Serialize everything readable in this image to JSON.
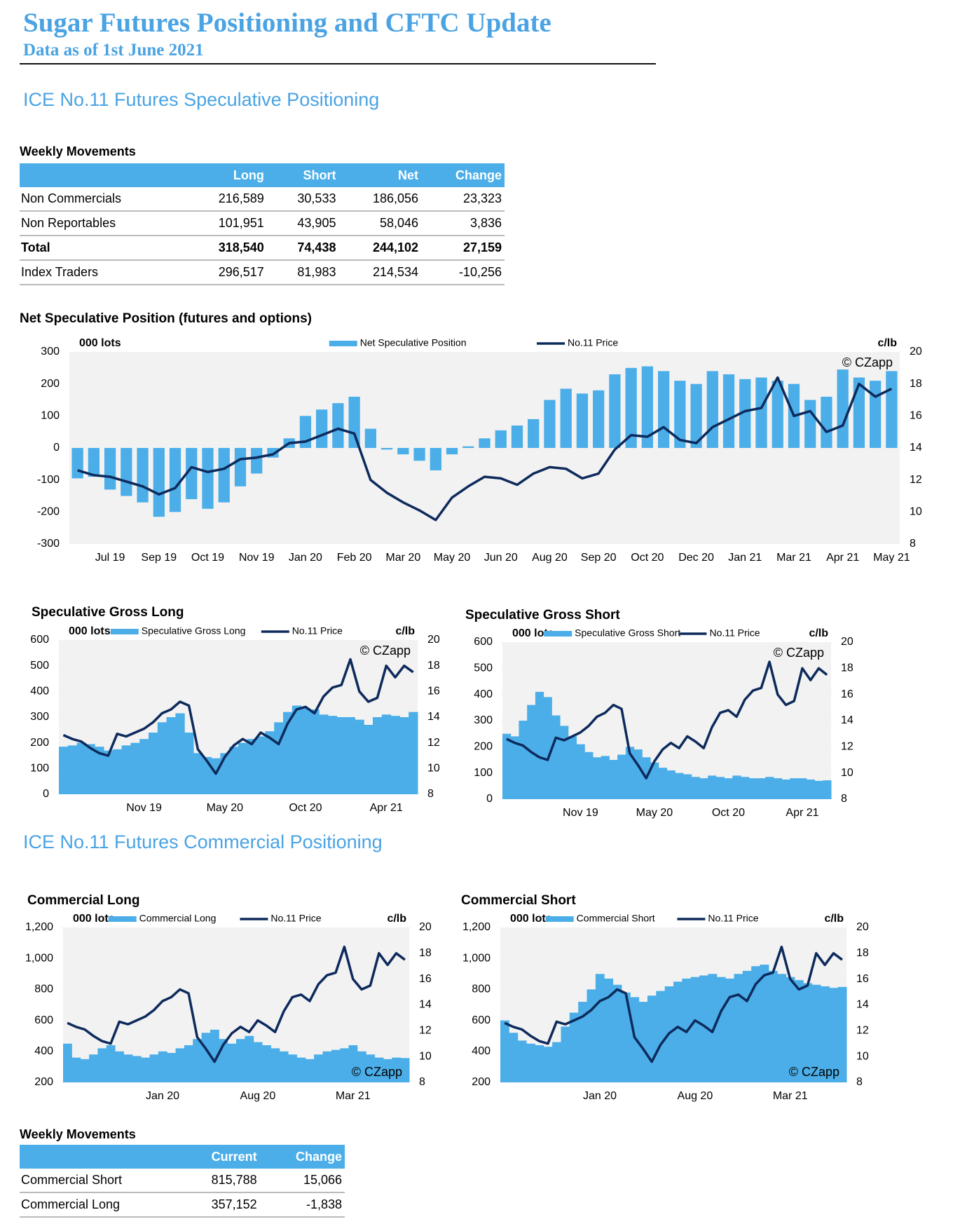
{
  "header": {
    "title": "Sugar Futures Positioning and CFTC Update",
    "subtitle": "Data as of 1st June 2021"
  },
  "sections": [
    "ICE No.11 Futures Speculative Positioning",
    "ICE No.11 Futures Commercial Positioning"
  ],
  "tables": [
    {
      "title": "Weekly Movements",
      "columns": [
        "Long",
        "Short",
        "Net",
        "Change"
      ],
      "rows": [
        [
          "Non Commercials",
          "216,589",
          "30,533",
          "186,056",
          "23,323"
        ],
        [
          "Non Reportables",
          "101,951",
          "43,905",
          "58,046",
          "3,836"
        ],
        [
          "Total",
          "318,540",
          "74,438",
          "244,102",
          "27,159"
        ],
        [
          "Index Traders",
          "296,517",
          "81,983",
          "214,534",
          "-10,256"
        ]
      ]
    },
    {
      "title": "Weekly Movements",
      "columns": [
        "Current",
        "Change"
      ],
      "rows": [
        [
          "Commercial Short",
          "815,788",
          "15,066"
        ],
        [
          "Commercial Long",
          "357,152",
          "-1,838"
        ]
      ]
    }
  ],
  "chart_data": [
    {
      "type": "combo",
      "title": "Net Speculative Position (futures and options)",
      "y_label": "000 lots",
      "y2_label": "c/lb",
      "annotation": "© CZapp",
      "annotation_corner": "top-right",
      "categories": [
        null,
        null,
        "Jul 19",
        null,
        null,
        "Sep 19",
        null,
        null,
        "Oct 19",
        null,
        null,
        "Nov 19",
        null,
        null,
        "Jan 20",
        null,
        null,
        "Feb 20",
        null,
        null,
        "Mar 20",
        null,
        null,
        "May 20",
        null,
        null,
        "Jun 20",
        null,
        null,
        "Aug 20",
        null,
        null,
        "Sep 20",
        null,
        null,
        "Oct 20",
        null,
        null,
        "Dec 20",
        null,
        null,
        "Jan 21",
        null,
        null,
        "Mar 21",
        null,
        null,
        "Apr 21",
        null,
        null,
        "May 21"
      ],
      "series": [
        {
          "name": "Net Speculative Position",
          "type": "bar",
          "color": "#4baee8",
          "values": [
            -95,
            -90,
            -130,
            -150,
            -170,
            -215,
            -200,
            -160,
            -190,
            -170,
            -120,
            -80,
            -30,
            30,
            100,
            120,
            140,
            160,
            60,
            -5,
            -20,
            -40,
            -70,
            -20,
            5,
            30,
            55,
            70,
            90,
            150,
            185,
            170,
            180,
            230,
            250,
            255,
            240,
            210,
            200,
            240,
            230,
            215,
            220,
            210,
            200,
            150,
            160,
            245,
            220,
            210,
            240
          ]
        },
        {
          "name": "No.11 Price",
          "type": "line",
          "axis": "y2",
          "color": "#0d2a5c",
          "values": [
            12.6,
            12.3,
            12.2,
            11.9,
            11.6,
            11.1,
            11.5,
            12.8,
            12.5,
            12.7,
            13.3,
            13.4,
            13.6,
            14.3,
            14.4,
            14.8,
            15.2,
            14.9,
            12.0,
            11.2,
            10.6,
            10.1,
            9.5,
            10.9,
            11.6,
            12.2,
            12.1,
            11.7,
            12.4,
            12.8,
            12.7,
            12.1,
            12.4,
            13.9,
            14.8,
            14.7,
            15.3,
            14.5,
            14.3,
            15.3,
            15.8,
            16.3,
            16.5,
            18.4,
            16.0,
            16.3,
            15.0,
            15.4,
            18.0,
            17.2,
            17.7
          ]
        }
      ],
      "ylim": [
        -300,
        300
      ],
      "yticks": [
        -300,
        -200,
        -100,
        0,
        100,
        200,
        300
      ],
      "y2lim": [
        8,
        20
      ],
      "y2ticks": [
        8,
        10,
        12,
        14,
        16,
        18,
        20
      ],
      "legend": "top"
    },
    {
      "type": "combo",
      "title": "Speculative Gross Long",
      "y_label": "000 lots",
      "y2_label": "c/lb",
      "annotation": "© CZapp",
      "annotation_corner": "top-right",
      "categories": [
        null,
        null,
        null,
        null,
        null,
        null,
        null,
        null,
        null,
        "Nov 19",
        null,
        null,
        null,
        null,
        null,
        null,
        null,
        null,
        "May 20",
        null,
        null,
        null,
        null,
        null,
        null,
        null,
        null,
        "Oct 20",
        null,
        null,
        null,
        null,
        null,
        null,
        null,
        null,
        "Apr 21",
        null,
        null,
        null
      ],
      "series": [
        {
          "name": "Speculative Gross Long",
          "type": "bar",
          "color": "#4baee8",
          "values": [
            185,
            190,
            200,
            195,
            185,
            170,
            175,
            190,
            200,
            215,
            240,
            280,
            300,
            315,
            240,
            160,
            145,
            140,
            160,
            185,
            200,
            215,
            225,
            245,
            280,
            320,
            345,
            335,
            330,
            310,
            305,
            300,
            300,
            290,
            270,
            300,
            310,
            305,
            300,
            320
          ]
        },
        {
          "name": "No.11 Price",
          "type": "line",
          "axis": "y2",
          "color": "#0d2a5c",
          "values": [
            12.6,
            12.3,
            12.1,
            11.6,
            11.2,
            11.0,
            12.7,
            12.5,
            12.8,
            13.1,
            13.6,
            14.3,
            14.6,
            15.2,
            14.9,
            11.5,
            10.6,
            9.6,
            10.9,
            11.8,
            12.3,
            11.9,
            12.8,
            12.4,
            11.9,
            13.5,
            14.6,
            14.8,
            14.3,
            15.6,
            16.3,
            16.5,
            18.5,
            16.0,
            15.2,
            15.5,
            18.0,
            17.1,
            18.0,
            17.5
          ]
        }
      ],
      "ylim": [
        0,
        600
      ],
      "yticks": [
        0,
        100,
        200,
        300,
        400,
        500,
        600
      ],
      "y2lim": [
        8,
        20
      ],
      "y2ticks": [
        8,
        10,
        12,
        14,
        16,
        18,
        20
      ],
      "legend": "top"
    },
    {
      "type": "combo",
      "title": "Speculative Gross Short",
      "y_label": "000 lots",
      "y2_label": "c/lb",
      "annotation": "© CZapp",
      "annotation_corner": "top-right",
      "categories": [
        null,
        null,
        null,
        null,
        null,
        null,
        null,
        null,
        null,
        "Nov 19",
        null,
        null,
        null,
        null,
        null,
        null,
        null,
        null,
        "May 20",
        null,
        null,
        null,
        null,
        null,
        null,
        null,
        null,
        "Oct 20",
        null,
        null,
        null,
        null,
        null,
        null,
        null,
        null,
        "Apr 21",
        null,
        null,
        null
      ],
      "series": [
        {
          "name": "Speculative Gross Short",
          "type": "bar",
          "color": "#4baee8",
          "values": [
            250,
            240,
            300,
            360,
            410,
            390,
            320,
            280,
            240,
            210,
            180,
            160,
            165,
            150,
            170,
            200,
            190,
            160,
            140,
            120,
            110,
            100,
            95,
            85,
            80,
            90,
            85,
            80,
            90,
            85,
            80,
            80,
            85,
            80,
            75,
            80,
            80,
            75,
            70,
            72
          ]
        },
        {
          "name": "No.11 Price",
          "type": "line",
          "axis": "y2",
          "color": "#0d2a5c",
          "values": [
            12.6,
            12.3,
            12.1,
            11.6,
            11.2,
            11.0,
            12.7,
            12.5,
            12.8,
            13.1,
            13.6,
            14.3,
            14.6,
            15.2,
            14.9,
            11.5,
            10.6,
            9.6,
            10.9,
            11.8,
            12.3,
            11.9,
            12.8,
            12.4,
            11.9,
            13.5,
            14.6,
            14.8,
            14.3,
            15.6,
            16.3,
            16.5,
            18.5,
            16.0,
            15.2,
            15.5,
            18.0,
            17.1,
            18.0,
            17.5
          ]
        }
      ],
      "ylim": [
        0,
        600
      ],
      "yticks": [
        0,
        100,
        200,
        300,
        400,
        500,
        600
      ],
      "y2lim": [
        8,
        20
      ],
      "y2ticks": [
        8,
        10,
        12,
        14,
        16,
        18,
        20
      ],
      "legend": "top"
    },
    {
      "type": "combo",
      "title": "Commercial Long",
      "y_label": "000 lots",
      "y2_label": "c/lb",
      "annotation": "© CZapp",
      "annotation_corner": "bottom-right",
      "categories": [
        null,
        null,
        null,
        null,
        null,
        null,
        null,
        null,
        null,
        null,
        null,
        "Jan 20",
        null,
        null,
        null,
        null,
        null,
        null,
        null,
        null,
        null,
        null,
        "Aug 20",
        null,
        null,
        null,
        null,
        null,
        null,
        null,
        null,
        null,
        null,
        "Mar 21",
        null,
        null,
        null,
        null,
        null,
        null
      ],
      "series": [
        {
          "name": "Commercial Long",
          "type": "bar",
          "color": "#4baee8",
          "values": [
            450,
            360,
            350,
            380,
            420,
            440,
            400,
            380,
            370,
            360,
            380,
            400,
            390,
            420,
            440,
            480,
            520,
            540,
            480,
            450,
            480,
            500,
            460,
            440,
            420,
            400,
            380,
            360,
            350,
            380,
            400,
            410,
            420,
            440,
            400,
            380,
            360,
            350,
            360,
            357
          ]
        },
        {
          "name": "No.11 Price",
          "type": "line",
          "axis": "y2",
          "color": "#0d2a5c",
          "values": [
            12.6,
            12.3,
            12.1,
            11.6,
            11.2,
            11.0,
            12.7,
            12.5,
            12.8,
            13.1,
            13.6,
            14.3,
            14.6,
            15.2,
            14.9,
            11.5,
            10.6,
            9.6,
            10.9,
            11.8,
            12.3,
            11.9,
            12.8,
            12.4,
            11.9,
            13.5,
            14.6,
            14.8,
            14.3,
            15.6,
            16.3,
            16.5,
            18.5,
            16.0,
            15.2,
            15.5,
            18.0,
            17.1,
            18.0,
            17.5
          ]
        }
      ],
      "ylim": [
        200,
        1200
      ],
      "yticks": [
        200,
        400,
        600,
        800,
        {
          "value": 1000,
          "label": "1,000"
        },
        {
          "value": 1200,
          "label": "1,200"
        }
      ],
      "y2lim": [
        8,
        20
      ],
      "y2ticks": [
        8,
        10,
        12,
        14,
        16,
        18,
        20
      ],
      "legend": "top"
    },
    {
      "type": "combo",
      "title": "Commercial Short",
      "y_label": "000 lots",
      "y2_label": "c/lb",
      "annotation": "© CZapp",
      "annotation_corner": "bottom-right",
      "categories": [
        null,
        null,
        null,
        null,
        null,
        null,
        null,
        null,
        null,
        null,
        null,
        "Jan 20",
        null,
        null,
        null,
        null,
        null,
        null,
        null,
        null,
        null,
        null,
        "Aug 20",
        null,
        null,
        null,
        null,
        null,
        null,
        null,
        null,
        null,
        null,
        "Mar 21",
        null,
        null,
        null,
        null,
        null,
        null
      ],
      "series": [
        {
          "name": "Commercial Short",
          "type": "bar",
          "color": "#4baee8",
          "values": [
            600,
            520,
            470,
            450,
            440,
            430,
            460,
            560,
            650,
            720,
            800,
            900,
            870,
            830,
            780,
            750,
            720,
            760,
            790,
            820,
            850,
            870,
            880,
            890,
            900,
            880,
            870,
            900,
            920,
            950,
            960,
            920,
            900,
            880,
            860,
            840,
            830,
            820,
            810,
            816
          ]
        },
        {
          "name": "No.11 Price",
          "type": "line",
          "axis": "y2",
          "color": "#0d2a5c",
          "values": [
            12.6,
            12.3,
            12.1,
            11.6,
            11.2,
            11.0,
            12.7,
            12.5,
            12.8,
            13.1,
            13.6,
            14.3,
            14.6,
            15.2,
            14.9,
            11.5,
            10.6,
            9.6,
            10.9,
            11.8,
            12.3,
            11.9,
            12.8,
            12.4,
            11.9,
            13.5,
            14.6,
            14.8,
            14.3,
            15.6,
            16.3,
            16.5,
            18.5,
            16.0,
            15.2,
            15.5,
            18.0,
            17.1,
            18.0,
            17.5
          ]
        }
      ],
      "ylim": [
        200,
        1200
      ],
      "yticks": [
        200,
        400,
        600,
        800,
        {
          "value": 1000,
          "label": "1,000"
        },
        {
          "value": 1200,
          "label": "1,200"
        }
      ],
      "y2lim": [
        8,
        20
      ],
      "y2ticks": [
        8,
        10,
        12,
        14,
        16,
        18,
        20
      ],
      "legend": "top"
    }
  ]
}
